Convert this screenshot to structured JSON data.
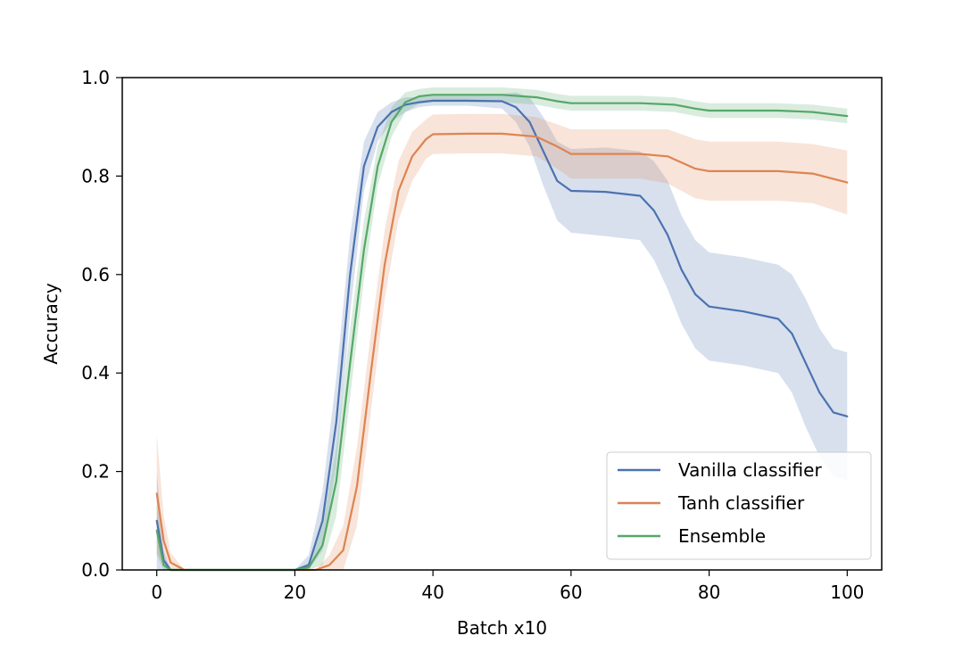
{
  "chart_data": {
    "type": "line",
    "xlabel": "Batch x10",
    "ylabel": "Accuracy",
    "xlim": [
      -5,
      105
    ],
    "ylim": [
      0,
      1
    ],
    "xticks": [
      0,
      20,
      40,
      60,
      80,
      100
    ],
    "xtick_labels": [
      "0",
      "20",
      "40",
      "60",
      "80",
      "100"
    ],
    "yticks": [
      0,
      0.2,
      0.4,
      0.6,
      0.8,
      1.0
    ],
    "ytick_labels": [
      "0.0",
      "0.2",
      "0.4",
      "0.6",
      "0.8",
      "1.0"
    ],
    "grid": false,
    "legend_position": "lower-right",
    "series": [
      {
        "name": "Vanilla classifier",
        "color": "#4c72b0",
        "x": [
          0,
          1,
          2,
          4,
          10,
          20,
          22,
          24,
          26,
          28,
          30,
          32,
          34,
          36,
          38,
          40,
          45,
          50,
          52,
          54,
          56,
          58,
          60,
          65,
          70,
          72,
          74,
          76,
          78,
          80,
          85,
          90,
          92,
          94,
          96,
          98,
          100
        ],
        "values": [
          0.1,
          0.02,
          0.0,
          0.0,
          0.0,
          0.0,
          0.01,
          0.1,
          0.3,
          0.6,
          0.82,
          0.9,
          0.93,
          0.945,
          0.95,
          0.953,
          0.953,
          0.952,
          0.94,
          0.91,
          0.85,
          0.79,
          0.77,
          0.768,
          0.76,
          0.73,
          0.68,
          0.61,
          0.56,
          0.535,
          0.525,
          0.51,
          0.48,
          0.42,
          0.36,
          0.32,
          0.312
        ],
        "band": [
          0.1,
          0.02,
          0.0,
          0.0,
          0.0,
          0.0,
          0.02,
          0.06,
          0.09,
          0.08,
          0.05,
          0.03,
          0.02,
          0.015,
          0.01,
          0.01,
          0.01,
          0.015,
          0.03,
          0.05,
          0.07,
          0.08,
          0.085,
          0.09,
          0.09,
          0.1,
          0.11,
          0.11,
          0.11,
          0.11,
          0.11,
          0.11,
          0.12,
          0.13,
          0.13,
          0.13,
          0.13
        ]
      },
      {
        "name": "Tanh classifier",
        "color": "#dd8452",
        "x": [
          0,
          1,
          2,
          4,
          10,
          20,
          23,
          25,
          27,
          29,
          31,
          33,
          35,
          37,
          39,
          40,
          45,
          50,
          55,
          58,
          60,
          65,
          70,
          74,
          78,
          80,
          85,
          90,
          95,
          100
        ],
        "values": [
          0.155,
          0.06,
          0.015,
          0.0,
          0.0,
          0.0,
          0.0,
          0.01,
          0.04,
          0.17,
          0.4,
          0.62,
          0.77,
          0.84,
          0.875,
          0.885,
          0.886,
          0.886,
          0.88,
          0.86,
          0.845,
          0.845,
          0.845,
          0.84,
          0.815,
          0.81,
          0.81,
          0.81,
          0.805,
          0.787
        ],
        "band": [
          0.12,
          0.05,
          0.02,
          0.0,
          0.0,
          0.0,
          0.0,
          0.02,
          0.05,
          0.08,
          0.08,
          0.07,
          0.06,
          0.05,
          0.04,
          0.04,
          0.04,
          0.04,
          0.04,
          0.045,
          0.05,
          0.05,
          0.05,
          0.055,
          0.06,
          0.06,
          0.06,
          0.06,
          0.06,
          0.065
        ]
      },
      {
        "name": "Ensemble",
        "color": "#55a868",
        "x": [
          0,
          1,
          2,
          4,
          10,
          20,
          22,
          24,
          26,
          28,
          30,
          32,
          34,
          36,
          38,
          40,
          45,
          50,
          55,
          58,
          60,
          70,
          75,
          78,
          80,
          90,
          95,
          100
        ],
        "values": [
          0.08,
          0.01,
          0.0,
          0.0,
          0.0,
          0.0,
          0.005,
          0.05,
          0.18,
          0.42,
          0.65,
          0.82,
          0.91,
          0.95,
          0.962,
          0.965,
          0.965,
          0.965,
          0.96,
          0.952,
          0.948,
          0.948,
          0.945,
          0.937,
          0.933,
          0.933,
          0.93,
          0.922
        ],
        "band": [
          0.05,
          0.01,
          0.0,
          0.0,
          0.0,
          0.0,
          0.01,
          0.04,
          0.07,
          0.07,
          0.06,
          0.04,
          0.03,
          0.02,
          0.015,
          0.015,
          0.015,
          0.015,
          0.015,
          0.015,
          0.015,
          0.015,
          0.015,
          0.015,
          0.015,
          0.015,
          0.015,
          0.015
        ]
      }
    ]
  }
}
